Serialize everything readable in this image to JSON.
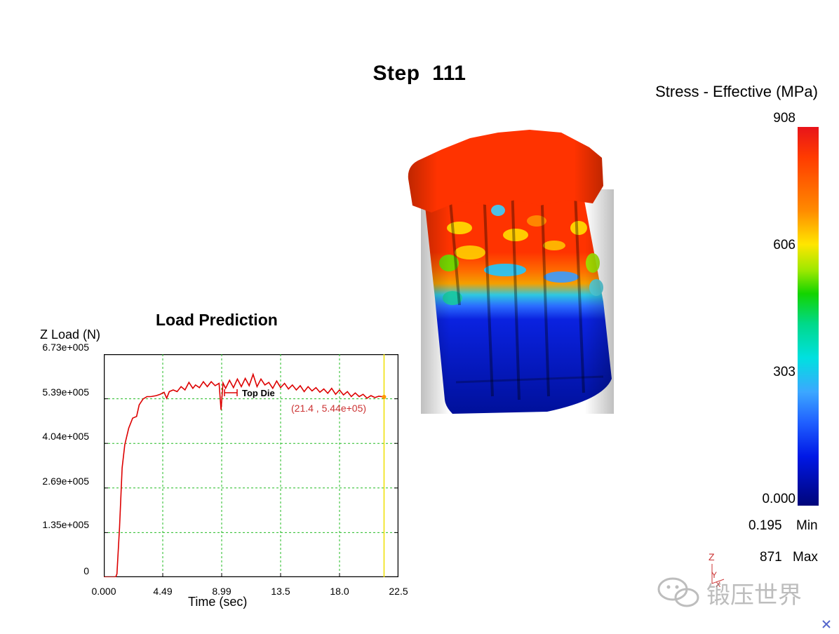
{
  "viewer": {
    "step_label": "Step",
    "step_number": "111"
  },
  "legend": {
    "title": "Stress - Effective (MPa)",
    "ticks": [
      "908",
      "606",
      "303",
      "0.000"
    ],
    "min_value": "0.195",
    "min_label": "Min",
    "max_value": "871",
    "max_label": "Max",
    "colors": {
      "high": "#e8141a",
      "mid": "#13d400",
      "low": "#00067a"
    }
  },
  "load_prediction": {
    "title": "Load Prediction",
    "y_axis_label": "Z Load (N)",
    "x_axis_label": "Time (sec)",
    "series_name": "Top Die",
    "cursor_readout": "(21.4 , 5.44e+05)",
    "chart_data": {
      "type": "line",
      "title": "Load Prediction",
      "xlabel": "Time (sec)",
      "ylabel": "Z Load (N)",
      "xlim": [
        0,
        22.5
      ],
      "ylim": [
        0,
        673000
      ],
      "x_ticks": [
        "0.000",
        "4.49",
        "8.99",
        "13.5",
        "18.0",
        "22.5"
      ],
      "y_ticks": [
        "0",
        "1.35e+005",
        "2.69e+005",
        "4.04e+005",
        "5.39e+005",
        "6.73e+005"
      ],
      "grid": true,
      "cursor": {
        "x": 21.4,
        "y": 544000
      },
      "series": [
        {
          "name": "Top Die",
          "color": "#dd0000",
          "x": [
            0,
            0.9,
            1.0,
            1.2,
            1.4,
            1.6,
            1.9,
            2.2,
            2.5,
            2.7,
            3.0,
            3.3,
            3.6,
            4.0,
            4.3,
            4.6,
            4.8,
            5.0,
            5.3,
            5.6,
            5.9,
            6.2,
            6.5,
            6.8,
            7.0,
            7.3,
            7.6,
            7.9,
            8.2,
            8.5,
            8.8,
            8.95,
            9.1,
            9.3,
            9.6,
            9.9,
            10.2,
            10.5,
            10.8,
            11.1,
            11.4,
            11.7,
            12.0,
            12.3,
            12.6,
            12.9,
            13.2,
            13.5,
            13.8,
            14.1,
            14.4,
            14.7,
            15.0,
            15.3,
            15.6,
            15.9,
            16.2,
            16.5,
            16.8,
            17.1,
            17.4,
            17.7,
            18.0,
            18.3,
            18.6,
            18.9,
            19.2,
            19.5,
            19.8,
            20.1,
            20.4,
            20.7,
            21.0,
            21.4
          ],
          "y": [
            0,
            0,
            10000,
            150000,
            330000,
            400000,
            450000,
            480000,
            485000,
            520000,
            538000,
            545000,
            545000,
            548000,
            552000,
            558000,
            540000,
            560000,
            565000,
            560000,
            575000,
            565000,
            588000,
            570000,
            580000,
            572000,
            590000,
            575000,
            590000,
            578000,
            585000,
            505000,
            586000,
            570000,
            594000,
            572000,
            598000,
            575000,
            600000,
            578000,
            612000,
            575000,
            598000,
            580000,
            588000,
            570000,
            592000,
            572000,
            585000,
            568000,
            580000,
            565000,
            578000,
            560000,
            575000,
            562000,
            572000,
            558000,
            568000,
            555000,
            570000,
            552000,
            565000,
            550000,
            560000,
            545000,
            556000,
            545000,
            552000,
            540000,
            548000,
            542000,
            546000,
            544000
          ]
        }
      ]
    }
  },
  "triad": {
    "z": "Z",
    "y": "Y",
    "x": "X"
  },
  "watermark": {
    "text": "锻压世界"
  }
}
